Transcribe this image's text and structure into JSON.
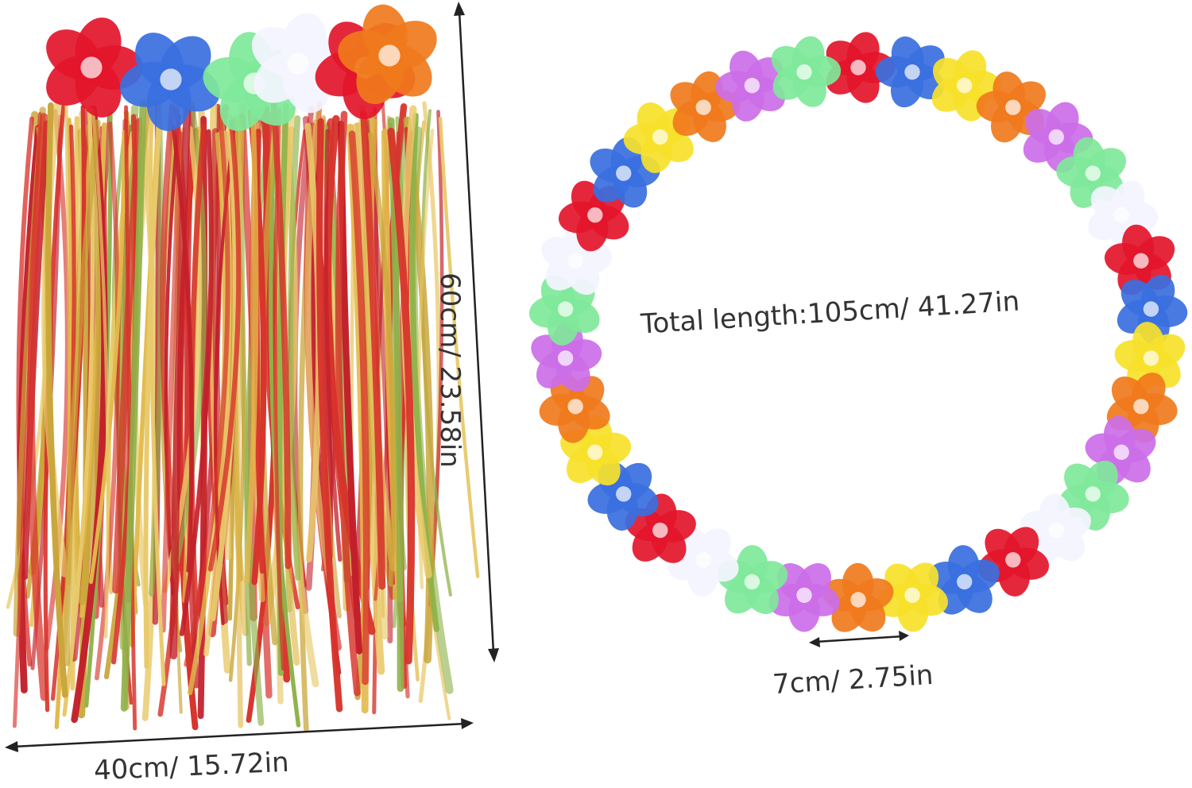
{
  "product": {
    "skirt": {
      "image": "hula-grass-skirt",
      "length_label": "60cm/ 23.58in",
      "width_label": "40cm/ 15.72in"
    },
    "lei": {
      "image": "flower-lei-necklace",
      "total_length_label": "Total length:105cm/ 41.27in",
      "flower_size_label": "7cm/ 2.75in"
    }
  },
  "colors": {
    "flower_palette": [
      "#e3152b",
      "#3a6fe0",
      "#f7e12a",
      "#f07a1c",
      "#cc6ee8",
      "#7fe89a",
      "#f4f4ff"
    ],
    "fringe_palette": [
      "#d7332b",
      "#e2b94a",
      "#c9a53a",
      "#8fb24a",
      "#e8c96a",
      "#c21f2a"
    ],
    "arrow": "#222222",
    "text": "#333333"
  }
}
